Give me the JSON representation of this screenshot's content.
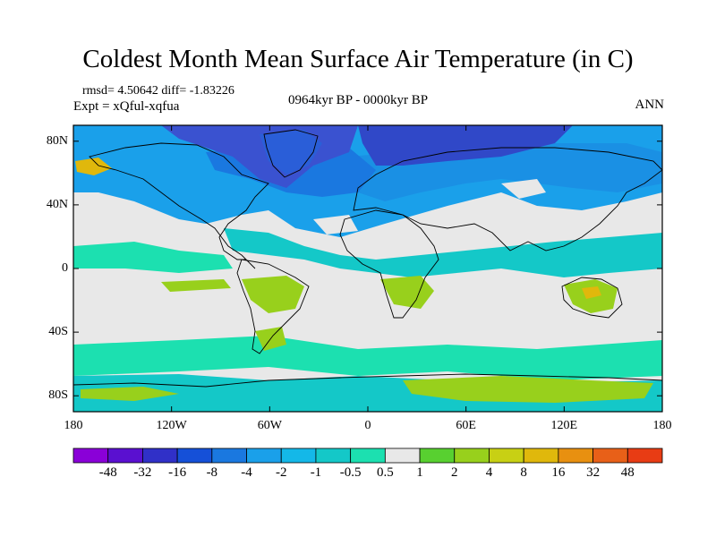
{
  "title": "Coldest Month Mean Surface Air Temperature (in C)",
  "stats_line": "rmsd= 4.50642 diff= -1.83226",
  "experiment": "Expt = xQful-xqfua",
  "period": "0964kyr BP - 0000kyr BP",
  "season": "ANN",
  "axes": {
    "y_ticks": [
      {
        "value": 80,
        "label": "80N"
      },
      {
        "value": 40,
        "label": "40N"
      },
      {
        "value": 0,
        "label": "0"
      },
      {
        "value": -40,
        "label": "40S"
      },
      {
        "value": -80,
        "label": "80S"
      }
    ],
    "x_ticks": [
      {
        "value": -180,
        "label": "180"
      },
      {
        "value": -120,
        "label": "120W"
      },
      {
        "value": -60,
        "label": "60W"
      },
      {
        "value": 0,
        "label": "0"
      },
      {
        "value": 60,
        "label": "60E"
      },
      {
        "value": 120,
        "label": "120E"
      },
      {
        "value": 180,
        "label": "180"
      }
    ],
    "lon_range": [
      -180,
      180
    ],
    "lat_range": [
      -90,
      90
    ]
  },
  "colorbar": {
    "colors": [
      "#8a00d8",
      "#5a10d0",
      "#3030c8",
      "#1550d8",
      "#1a78e0",
      "#1aa0ea",
      "#14b8e8",
      "#14c8c8",
      "#1ce0b0",
      "#e8e8e8",
      "#58d030",
      "#98d01c",
      "#c8d014",
      "#e0b80c",
      "#e89010",
      "#e86018",
      "#e83c14"
    ],
    "labels": [
      "-48",
      "-32",
      "-16",
      "-8",
      "-4",
      "-2",
      "-1",
      "-0.5",
      "0.5",
      "1",
      "2",
      "4",
      "8",
      "16",
      "32",
      "48"
    ]
  },
  "map_regions": [
    {
      "name": "arctic-north-america",
      "color": "#3a52d0"
    },
    {
      "name": "arctic-eurasia",
      "color": "#3048c8"
    },
    {
      "name": "greenland",
      "color": "#2a5ed8"
    },
    {
      "name": "north-atlantic",
      "color": "#1a78e0"
    },
    {
      "name": "north-pacific",
      "color": "#1aa0ea"
    },
    {
      "name": "eurasia",
      "color": "#1a90e4"
    },
    {
      "name": "tropics-band",
      "color": "#14c8c8"
    },
    {
      "name": "southern-ocean",
      "color": "#e8e8e8"
    },
    {
      "name": "antarctica-band",
      "color": "#1ce0b0"
    },
    {
      "name": "australia-warm",
      "color": "#98d01c"
    },
    {
      "name": "south-america-warm",
      "color": "#98d01c"
    },
    {
      "name": "africa-warm",
      "color": "#98d01c"
    },
    {
      "name": "alaska-warm",
      "color": "#e0b80c"
    },
    {
      "name": "antarctic-warm",
      "color": "#98d01c"
    }
  ]
}
